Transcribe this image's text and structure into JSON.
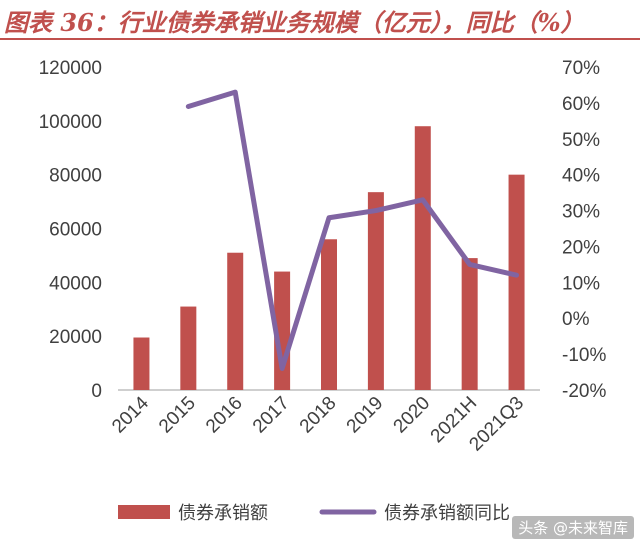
{
  "title": "图表 36：行业债券承销业务规模（亿元），同比（%）",
  "watermark": "头条 @未来智库",
  "colors": {
    "bar": "#c0504d",
    "line": "#8064a2",
    "title": "#c0504d",
    "axis": "#bfbfbf"
  },
  "chart_data": {
    "type": "bar",
    "categories": [
      "2014",
      "2015",
      "2016",
      "2017",
      "2018",
      "2019",
      "2020",
      "2021H",
      "2021Q3"
    ],
    "series": [
      {
        "name": "债券承销额",
        "type": "bar",
        "axis": "left",
        "values": [
          19500,
          31000,
          51000,
          44000,
          56000,
          73500,
          98000,
          49000,
          80000
        ]
      },
      {
        "name": "债券承销额同比",
        "type": "line",
        "axis": "right",
        "values": [
          null,
          59,
          63,
          -14,
          28,
          30,
          33,
          15,
          12
        ]
      }
    ],
    "y_left": {
      "min": 0,
      "max": 120000,
      "ticks": [
        "0",
        "20000",
        "40000",
        "60000",
        "80000",
        "100000",
        "120000"
      ]
    },
    "y_right": {
      "min": -20,
      "max": 70,
      "ticks": [
        "-20%",
        "-10%",
        "0%",
        "10%",
        "20%",
        "30%",
        "40%",
        "50%",
        "60%",
        "70%"
      ]
    },
    "grid": false,
    "legend": "bottom"
  }
}
